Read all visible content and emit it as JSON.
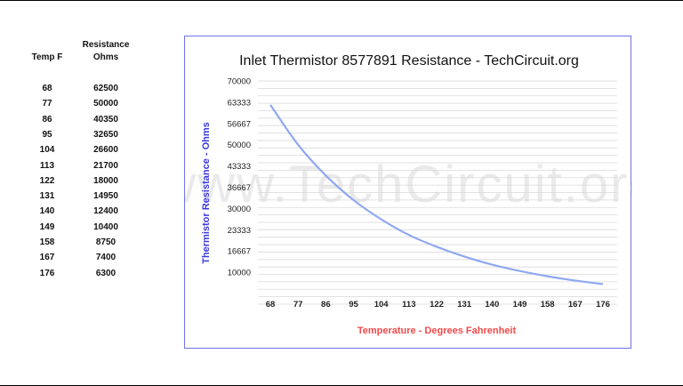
{
  "table": {
    "headers": {
      "temp": "Temp F",
      "resistance_line1": "Resistance",
      "resistance_line2": "Ohms"
    },
    "rows": [
      [
        "68",
        "62500"
      ],
      [
        "77",
        "50000"
      ],
      [
        "86",
        "40350"
      ],
      [
        "95",
        "32650"
      ],
      [
        "104",
        "26600"
      ],
      [
        "113",
        "21700"
      ],
      [
        "122",
        "18000"
      ],
      [
        "131",
        "14950"
      ],
      [
        "140",
        "12400"
      ],
      [
        "149",
        "10400"
      ],
      [
        "158",
        "8750"
      ],
      [
        "167",
        "7400"
      ],
      [
        "176",
        "6300"
      ]
    ]
  },
  "watermark": "www.TechCircuit.org",
  "chart_data": {
    "type": "line",
    "title": "Inlet Thermistor 8577891 Resistance  - TechCircuit.org",
    "xlabel": "Temperature - Degrees Fahrenheit",
    "ylabel": "Thermistor Resistance - Ohms",
    "categories": [
      "68",
      "77",
      "86",
      "95",
      "104",
      "113",
      "122",
      "131",
      "140",
      "149",
      "158",
      "167",
      "176"
    ],
    "series": [
      {
        "values": [
          62500,
          50000,
          40350,
          32650,
          26600,
          21700,
          18000,
          14950,
          12400,
          10400,
          8750,
          7400,
          6300
        ]
      }
    ],
    "ylim": [
      0,
      70000
    ],
    "y_ticks": [
      "10000",
      "16667",
      "23333",
      "30000",
      "36667",
      "43333",
      "50000",
      "56667",
      "63333",
      "70000"
    ],
    "y_tick_values": [
      10000,
      16667,
      23333,
      30000,
      36667,
      43333,
      50000,
      56667,
      63333,
      70000
    ],
    "grid": true,
    "colors": {
      "line": "#8fa8f0",
      "ylabel": "#3a3ae0",
      "xlabel": "#f04a4a",
      "border": "#6f73e6",
      "grid": "#d9d9d9"
    }
  }
}
